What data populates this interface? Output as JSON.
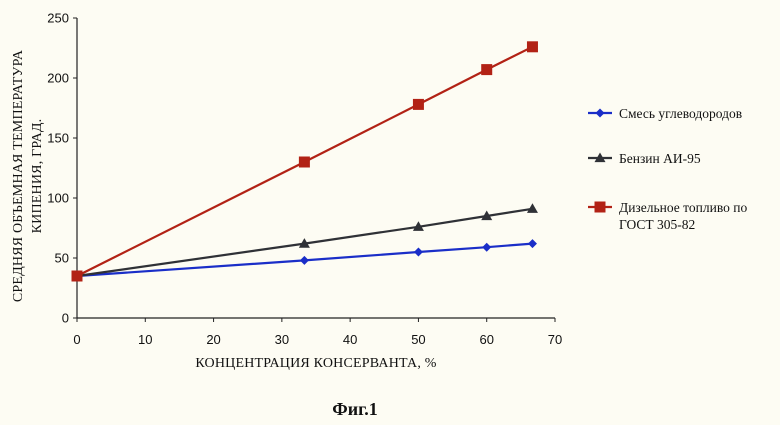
{
  "chart_data": {
    "type": "line",
    "xlabel": "КОНЦЕНТРАЦИЯ КОНСЕРВАНТА, %",
    "ylabel_lines": [
      "СРЕДНЯЯ ОБЪЕМНАЯ ТЕМПЕРАТУРА",
      "КИПЕНИЯ, ГРАД."
    ],
    "xlim": [
      0,
      70
    ],
    "ylim": [
      0,
      250
    ],
    "x_ticks": [
      "0",
      "10",
      "20",
      "30",
      "40",
      "50",
      "60",
      "70"
    ],
    "y_ticks": [
      "0",
      "50",
      "100",
      "150",
      "200",
      "250"
    ],
    "grid": false,
    "legend_position": "right",
    "series": [
      {
        "name": "Смесь углеводородов",
        "color": "#1a2ec8",
        "marker": "diamond",
        "x": [
          0,
          33.3,
          50,
          60,
          66.7
        ],
        "y": [
          35,
          48,
          55,
          59,
          62
        ]
      },
      {
        "name": "Бензин АИ-95",
        "color": "#2f3136",
        "marker": "triangle",
        "x": [
          0,
          33.3,
          50,
          60,
          66.7
        ],
        "y": [
          35,
          62,
          76,
          85,
          91
        ]
      },
      {
        "name_lines": [
          "Дизельное топливо по",
          "ГОСТ 305-82"
        ],
        "color": "#b22215",
        "marker": "square",
        "x": [
          0,
          33.3,
          50,
          60,
          66.7
        ],
        "y": [
          35,
          130,
          178,
          207,
          226
        ]
      }
    ]
  },
  "caption": "Фиг.1"
}
